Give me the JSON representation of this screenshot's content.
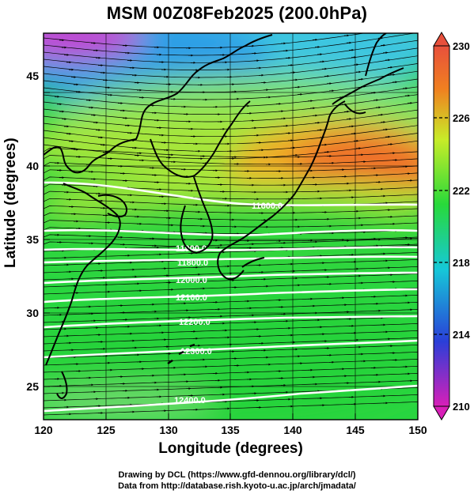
{
  "title": "MSM 00Z08Feb2025 (200.0hPa)",
  "x_axis_label": "Longitude (degrees)",
  "y_axis_label": "Latitude  (degrees)",
  "x_ticks": [
    "120",
    "125",
    "130",
    "135",
    "140",
    "145",
    "150"
  ],
  "y_ticks": [
    "25",
    "30",
    "35",
    "40",
    "45"
  ],
  "colorbar": {
    "min": 210,
    "max": 230,
    "ticks": [
      "210",
      "214",
      "218",
      "222",
      "226",
      "230"
    ],
    "colors": [
      "#d81fb8",
      "#2a3fd8",
      "#16c8d8",
      "#28d93a",
      "#c8ec28",
      "#f08020",
      "#e8503c"
    ]
  },
  "contour_labels": [
    "11600.0",
    "11800.0",
    "11900.0",
    "12000.0",
    "12100.0",
    "12200.0",
    "12300.0",
    "12400.0"
  ],
  "credits": {
    "line1": "Drawing by DCL (https://www.gfd-dennou.org/library/dcl/)",
    "line2": "Data from http://database.rish.kyoto-u.ac.jp/arch/jmadata/"
  },
  "chart_data": {
    "type": "heatmap",
    "title": "MSM 00Z08Feb2025 (200.0hPa)",
    "xlabel": "Longitude (degrees)",
    "ylabel": "Latitude  (degrees)",
    "xlim": [
      120,
      150
    ],
    "ylim": [
      22.4,
      47.6
    ],
    "x_ticks": [
      120,
      125,
      130,
      135,
      140,
      145,
      150
    ],
    "y_ticks": [
      25,
      30,
      35,
      40,
      45
    ],
    "color_variable_range": [
      210,
      230
    ],
    "features": [
      "shaded temperature field",
      "streamlines",
      "height contours",
      "coastlines",
      "lat-lon grid"
    ]
  }
}
